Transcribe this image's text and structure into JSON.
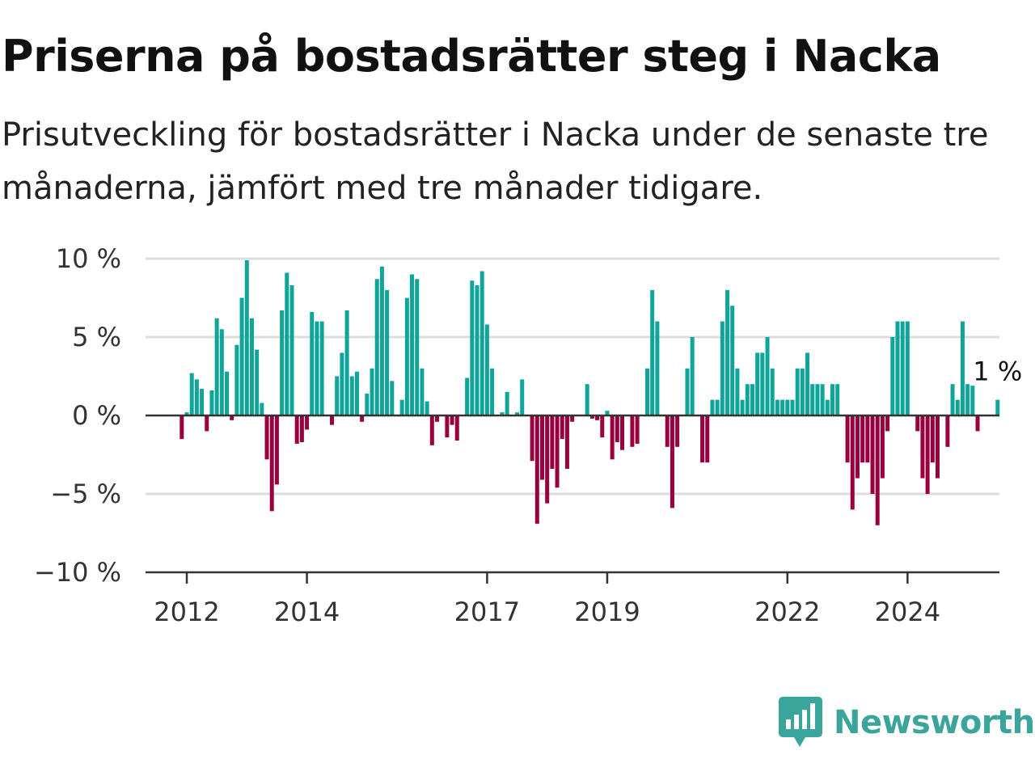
{
  "title": "Priserna på bostadsrätter steg i Nacka",
  "subtitle": "Prisutveckling för bostadsrätter i Nacka under de senaste tre månaderna, jämfört med tre månader tidigare.",
  "logo_text": "Newsworthy",
  "colors": {
    "positive": "#0fa59a",
    "negative": "#99003f",
    "grid": "#dddddd",
    "axis": "#333333"
  },
  "chart_data": {
    "type": "bar",
    "ylim": [
      -10,
      10
    ],
    "y_ticks": [
      {
        "value": 10,
        "label": "10 %"
      },
      {
        "value": 5,
        "label": "5 %"
      },
      {
        "value": 0,
        "label": "0 %"
      },
      {
        "value": -5,
        "label": "−5 %"
      },
      {
        "value": -10,
        "label": "−10 %"
      }
    ],
    "x_ticks": [
      {
        "value": "2012-01",
        "label": "2012"
      },
      {
        "value": "2014-01",
        "label": "2014"
      },
      {
        "value": "2017-01",
        "label": "2017"
      },
      {
        "value": "2019-01",
        "label": "2019"
      },
      {
        "value": "2022-01",
        "label": "2022"
      },
      {
        "value": "2024-01",
        "label": "2024"
      }
    ],
    "start_month": "2011-12",
    "values": [
      -1.5,
      0.2,
      2.7,
      2.3,
      1.7,
      -1.0,
      1.6,
      6.2,
      5.5,
      2.8,
      -0.3,
      4.5,
      7.5,
      9.9,
      6.2,
      4.2,
      0.8,
      -2.8,
      -6.1,
      -4.4,
      6.7,
      9.1,
      8.3,
      -1.8,
      -1.7,
      -0.9,
      6.6,
      6.0,
      6.0,
      0.0,
      -0.6,
      2.5,
      4.0,
      6.7,
      2.5,
      2.8,
      -0.4,
      1.4,
      3.0,
      8.7,
      9.5,
      8.0,
      2.2,
      0.0,
      1.0,
      7.5,
      9.0,
      8.7,
      3.0,
      0.9,
      -1.9,
      -0.4,
      0.0,
      -1.4,
      -0.6,
      -1.6,
      0.0,
      2.4,
      8.6,
      8.3,
      9.2,
      5.8,
      3.0,
      0.0,
      0.2,
      1.5,
      0.0,
      0.2,
      2.3,
      0.0,
      -2.9,
      -6.9,
      -4.1,
      -5.6,
      -3.4,
      -4.6,
      -1.5,
      -3.4,
      -0.4,
      0.0,
      0.0,
      2.0,
      -0.2,
      -0.3,
      -1.4,
      0.3,
      -2.8,
      -1.7,
      -2.2,
      0.0,
      -2.0,
      -1.8,
      0.0,
      3.0,
      8.0,
      6.0,
      0.0,
      -2.0,
      -5.9,
      -2.0,
      0.0,
      3.0,
      5.0,
      0.0,
      -3.0,
      -3.0,
      1.0,
      1.0,
      6.0,
      8.0,
      7.0,
      3.0,
      1.0,
      2.0,
      2.0,
      4.0,
      4.0,
      5.0,
      3.0,
      1.0,
      1.0,
      1.0,
      1.0,
      3.0,
      3.0,
      4.0,
      2.0,
      2.0,
      2.0,
      1.0,
      2.0,
      2.0,
      0.0,
      -3.0,
      -6.0,
      -4.0,
      -3.0,
      -3.0,
      -5.0,
      -7.0,
      -4.0,
      -1.0,
      5.0,
      6.0,
      6.0,
      6.0,
      0.0,
      -1.0,
      -4.0,
      -5.0,
      -3.0,
      -4.0,
      0.0,
      -2.0,
      2.0,
      1.0,
      6.0,
      2.0,
      1.9,
      -1.0,
      0.0,
      0.0,
      0.0,
      1.0
    ],
    "last_value_label": "1 %"
  }
}
